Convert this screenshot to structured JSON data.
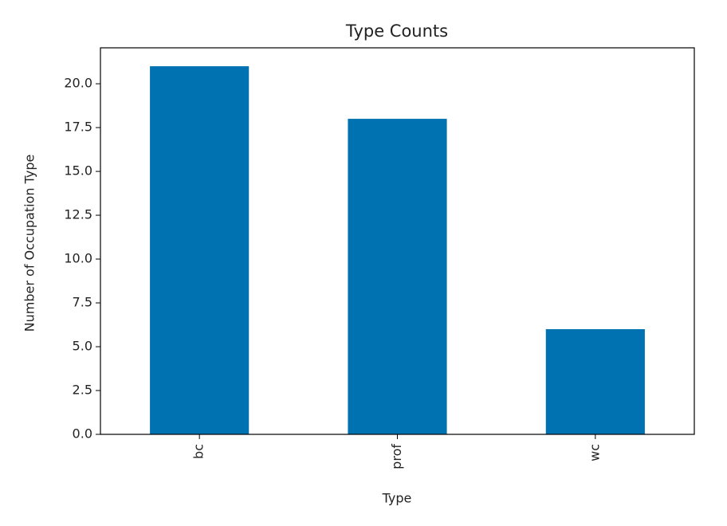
{
  "chart_data": {
    "type": "bar",
    "title": "Type Counts",
    "x_label": "Type",
    "y_label": "Number of Occupation Type",
    "categories": [
      "bc",
      "prof",
      "wc"
    ],
    "values": [
      21,
      18,
      6
    ],
    "color": "#0072b2",
    "ylim": [
      0,
      22.05
    ],
    "yticks": [
      {
        "value": 0,
        "label": "0.0"
      },
      2.5,
      {
        "value": 5,
        "label": "5.0"
      },
      7.5,
      {
        "value": 10,
        "label": "10.0"
      },
      12.5,
      {
        "value": 15,
        "label": "15.0"
      },
      17.5,
      {
        "value": 20,
        "label": "20.0"
      }
    ],
    "grid": false
  }
}
